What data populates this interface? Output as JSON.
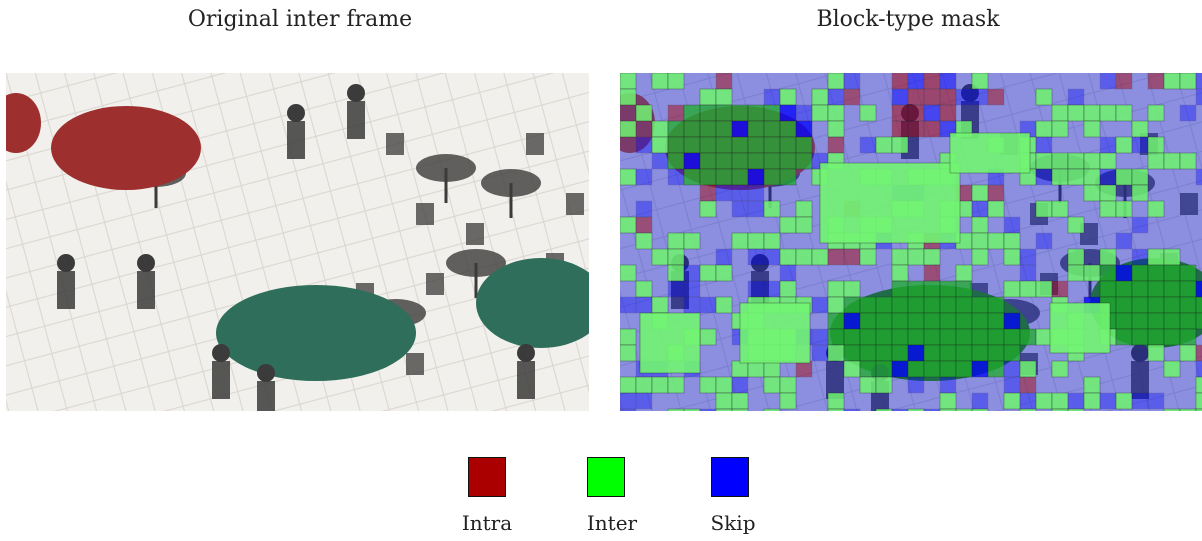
{
  "titles": {
    "left": "Original inter frame",
    "right": "Block-type mask"
  },
  "legend": [
    {
      "label": "Intra",
      "color": "#aa0000"
    },
    {
      "label": "Inter",
      "color": "#00ff00"
    },
    {
      "label": "Skip",
      "color": "#0000ff"
    }
  ],
  "colors": {
    "intra": "#aa0000",
    "inter": "#00ff00",
    "skip": "#0000ff"
  }
}
